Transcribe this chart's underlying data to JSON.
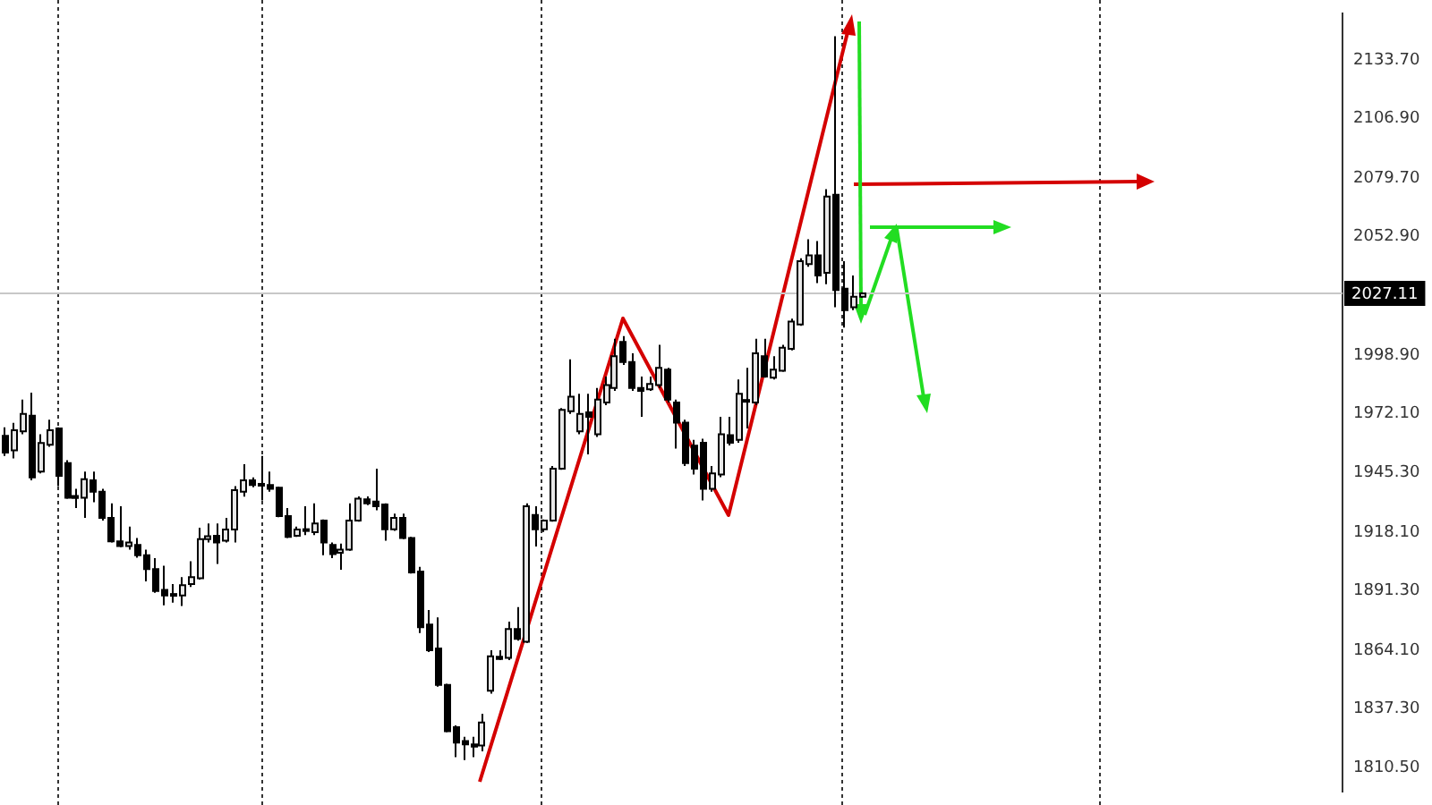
{
  "chart_data": {
    "type": "candlestick",
    "categories": [
      null,
      null,
      null,
      null,
      null,
      null,
      null,
      null,
      null,
      null,
      null,
      null,
      null,
      null,
      null,
      null,
      null,
      null,
      null,
      null,
      null,
      null,
      null,
      null,
      null,
      null,
      null,
      null,
      null,
      null,
      null,
      null,
      null,
      null,
      null,
      null,
      null,
      null,
      null,
      null,
      null,
      null,
      null,
      null,
      null,
      null,
      null,
      null,
      null,
      null,
      null,
      null,
      null,
      null,
      null,
      null,
      null,
      null,
      null,
      null,
      null,
      null,
      null,
      null,
      null,
      null,
      null,
      null,
      null,
      null,
      null,
      null,
      null,
      null,
      null,
      null,
      null,
      null,
      null,
      null,
      null,
      null,
      null,
      null,
      null,
      null,
      null,
      null,
      null,
      null,
      null,
      null,
      null,
      null,
      null,
      null,
      null,
      null,
      null,
      null,
      null,
      null,
      null,
      null,
      null,
      null,
      null,
      null,
      null,
      null,
      null,
      null,
      null,
      null,
      null,
      null,
      null,
      null,
      null,
      null,
      null,
      null,
      null,
      null,
      null,
      null,
      null,
      null,
      null,
      null,
      null,
      null,
      null,
      null,
      null,
      null,
      null,
      null,
      null,
      null,
      null,
      null,
      null,
      null,
      null,
      null,
      null,
      null,
      null,
      null,
      null,
      null
    ],
    "ohlc": [
      [
        1962.0,
        1965.9,
        1952.8,
        1954.4
      ],
      [
        1955.4,
        1968.0,
        1951.7,
        1964.6
      ],
      [
        1964.1,
        1978.6,
        1962.8,
        1972.0
      ],
      [
        1971.2,
        1981.7,
        1941.7,
        1943.0
      ],
      [
        1945.7,
        1962.8,
        1944.9,
        1958.8
      ],
      [
        1958.0,
        1969.4,
        1957.0,
        1964.6
      ],
      [
        1965.4,
        1965.9,
        1939.1,
        1943.8
      ],
      [
        1949.6,
        1950.9,
        1933.3,
        1933.8
      ],
      [
        1934.6,
        1937.8,
        1929.1,
        1933.6
      ],
      [
        1933.8,
        1945.7,
        1924.6,
        1942.2
      ],
      [
        1941.7,
        1945.7,
        1931.7,
        1936.5
      ],
      [
        1936.5,
        1937.8,
        1923.3,
        1924.6
      ],
      [
        1924.6,
        1931.2,
        1913.3,
        1913.8
      ],
      [
        1913.8,
        1929.9,
        1911.2,
        1911.7
      ],
      [
        1911.7,
        1920.6,
        1910.1,
        1913.3
      ],
      [
        1912.2,
        1915.4,
        1906.4,
        1907.5
      ],
      [
        1907.5,
        1910.1,
        1895.6,
        1901.2
      ],
      [
        1901.2,
        1906.2,
        1890.4,
        1891.2
      ],
      [
        1891.7,
        1902.7,
        1884.6,
        1889.1
      ],
      [
        1889.8,
        1894.3,
        1885.9,
        1889.1
      ],
      [
        1889.1,
        1897.5,
        1884.3,
        1893.8
      ],
      [
        1894.3,
        1904.8,
        1893.0,
        1897.5
      ],
      [
        1897.0,
        1920.1,
        1896.4,
        1914.9
      ],
      [
        1914.9,
        1922.0,
        1913.3,
        1916.2
      ],
      [
        1916.4,
        1922.0,
        1903.5,
        1913.3
      ],
      [
        1914.1,
        1924.6,
        1913.3,
        1919.3
      ],
      [
        1919.3,
        1939.1,
        1913.3,
        1937.2
      ],
      [
        1936.5,
        1949.1,
        1934.3,
        1941.7
      ],
      [
        1941.7,
        1943.0,
        1938.6,
        1939.6
      ],
      [
        1940.1,
        1952.8,
        1932.5,
        1939.6
      ],
      [
        1939.6,
        1945.7,
        1936.5,
        1937.8
      ],
      [
        1938.3,
        1938.8,
        1924.9,
        1925.4
      ],
      [
        1925.4,
        1929.1,
        1915.4,
        1915.9
      ],
      [
        1916.4,
        1920.6,
        1915.9,
        1919.3
      ],
      [
        1918.6,
        1929.9,
        1916.7,
        1919.4
      ],
      [
        1918.0,
        1931.2,
        1916.7,
        1922.0
      ],
      [
        1923.3,
        1923.8,
        1907.5,
        1913.3
      ],
      [
        1912.2,
        1913.3,
        1906.2,
        1908.0
      ],
      [
        1908.6,
        1912.8,
        1900.9,
        1910.1
      ],
      [
        1910.1,
        1931.2,
        1909.6,
        1923.3
      ],
      [
        1923.3,
        1934.4,
        1922.8,
        1933.3
      ],
      [
        1933.0,
        1934.4,
        1930.4,
        1931.2
      ],
      [
        1932.0,
        1947.0,
        1928.0,
        1929.9
      ],
      [
        1930.7,
        1931.2,
        1914.1,
        1919.4
      ],
      [
        1919.4,
        1926.5,
        1918.6,
        1924.6
      ],
      [
        1924.6,
        1926.5,
        1914.9,
        1915.4
      ],
      [
        1915.4,
        1915.9,
        1899.1,
        1899.6
      ],
      [
        1900.1,
        1902.2,
        1872.0,
        1874.6
      ],
      [
        1875.9,
        1882.5,
        1863.3,
        1864.1
      ],
      [
        1864.9,
        1879.1,
        1847.5,
        1848.3
      ],
      [
        1848.3,
        1848.8,
        1826.7,
        1827.2
      ],
      [
        1829.0,
        1829.8,
        1815.3,
        1821.9
      ],
      [
        1822.7,
        1824.6,
        1814.0,
        1821.1
      ],
      [
        1821.1,
        1824.6,
        1815.3,
        1820.1
      ],
      [
        1820.6,
        1835.1,
        1818.0,
        1831.1
      ],
      [
        1845.6,
        1864.1,
        1844.3,
        1861.4
      ],
      [
        1861.2,
        1864.1,
        1859.6,
        1860.1
      ],
      [
        1860.6,
        1877.2,
        1859.6,
        1873.8
      ],
      [
        1873.8,
        1883.8,
        1868.5,
        1869.3
      ],
      [
        1868.0,
        1931.2,
        1867.5,
        1929.9
      ],
      [
        1925.9,
        1929.9,
        1911.5,
        1919.4
      ],
      [
        1919.4,
        1923.8,
        1918.1,
        1923.3
      ],
      [
        1923.3,
        1948.3,
        1922.8,
        1947.0
      ],
      [
        1947.0,
        1974.7,
        1946.5,
        1973.9
      ],
      [
        1973.3,
        1997.0,
        1972.0,
        1979.9
      ],
      [
        1964.1,
        1981.2,
        1962.8,
        1972.0
      ],
      [
        1972.8,
        1981.2,
        1953.6,
        1970.7
      ],
      [
        1962.8,
        1983.9,
        1961.5,
        1978.6
      ],
      [
        1977.3,
        1989.1,
        1976.0,
        1985.2
      ],
      [
        1983.9,
        2006.3,
        1982.6,
        1998.4
      ],
      [
        2004.9,
        2007.6,
        1994.4,
        1995.7
      ],
      [
        1995.7,
        1999.7,
        1982.6,
        1983.9
      ],
      [
        1983.9,
        1989.1,
        1970.7,
        1982.6
      ],
      [
        1983.3,
        1989.1,
        1982.6,
        1985.7
      ],
      [
        1985.2,
        2003.6,
        1983.9,
        1993.1
      ],
      [
        1992.3,
        1993.1,
        1977.3,
        1978.6
      ],
      [
        1977.3,
        1978.6,
        1956.2,
        1968.1
      ],
      [
        1968.1,
        1969.4,
        1948.3,
        1949.6
      ],
      [
        1957.5,
        1960.2,
        1944.4,
        1947.0
      ],
      [
        1958.9,
        1960.7,
        1932.5,
        1937.8
      ],
      [
        1937.8,
        1948.3,
        1936.5,
        1944.9
      ],
      [
        1944.4,
        1970.7,
        1943.1,
        1962.8
      ],
      [
        1962.3,
        1970.7,
        1957.6,
        1958.9
      ],
      [
        1960.2,
        1987.8,
        1958.9,
        1981.2
      ],
      [
        1977.8,
        1993.1,
        1965.4,
        1978.4
      ],
      [
        1977.3,
        2006.3,
        1976.0,
        1999.7
      ],
      [
        1998.4,
        2006.3,
        1988.6,
        1989.1
      ],
      [
        1988.6,
        1998.4,
        1987.8,
        1992.3
      ],
      [
        1991.8,
        2003.6,
        1991.3,
        2002.3
      ],
      [
        2001.8,
        2015.5,
        2001.0,
        2014.2
      ],
      [
        2012.9,
        2043.1,
        2012.3,
        2041.8
      ],
      [
        2040.5,
        2051.8,
        2039.2,
        2044.4
      ],
      [
        2044.4,
        2051.0,
        2031.8,
        2035.2
      ],
      [
        2036.5,
        2074.7,
        2031.3,
        2071.3
      ],
      [
        2072.1,
        2144.5,
        2020.7,
        2028.6
      ],
      [
        2029.2,
        2041.8,
        2011.5,
        2019.4
      ],
      [
        2020.7,
        2035.2,
        2019.4,
        2025.5
      ],
      [
        2025.5,
        2027.6,
        2025.0,
        2027.1
      ],
      null,
      null,
      null,
      null,
      null,
      null,
      null,
      null,
      null,
      null,
      null,
      null,
      null,
      null,
      null,
      null,
      null,
      null,
      null,
      null,
      null,
      null,
      null,
      null,
      null,
      null,
      null,
      null,
      null,
      null,
      null,
      null,
      null,
      null,
      null,
      null,
      null,
      null,
      null,
      null,
      null,
      null,
      null,
      null,
      null,
      null,
      null,
      null,
      null,
      null,
      null,
      null,
      null,
      null
    ],
    "ref_lines": [
      {
        "axis": "y",
        "value": 2027.11,
        "label": "2027.11",
        "color": "#c8c8c8"
      }
    ],
    "ylim": [
      1799.5,
      2155.0
    ],
    "yticks": [
      {
        "value": 1810.5,
        "label": "1810.50"
      },
      {
        "value": 1837.3,
        "label": "1837.30"
      },
      {
        "value": 1864.1,
        "label": "1864.10"
      },
      {
        "value": 1891.3,
        "label": "1891.30"
      },
      {
        "value": 1918.1,
        "label": "1918.10"
      },
      {
        "value": 1945.3,
        "label": "1945.30"
      },
      {
        "value": 1972.1,
        "label": "1972.10"
      },
      {
        "value": 1998.9,
        "label": "1998.90"
      },
      {
        "value": 2052.9,
        "label": "2052.90"
      },
      {
        "value": 2079.7,
        "label": "2079.70"
      },
      {
        "value": 2106.9,
        "label": "2106.90"
      },
      {
        "value": 2133.7,
        "label": "2133.70"
      }
    ],
    "tick_labels": "y",
    "legend": false
  }
}
